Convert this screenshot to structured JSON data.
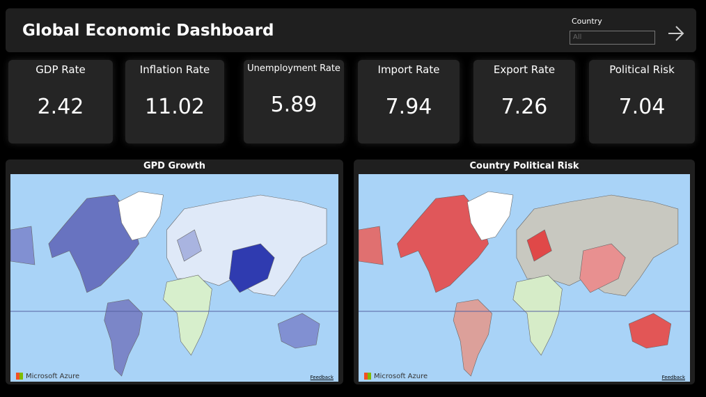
{
  "header": {
    "title": "Global Economic Dashboard",
    "filter": {
      "label": "Country",
      "value": "All"
    }
  },
  "kpis": [
    {
      "label": "GDP Rate",
      "value": "2.42"
    },
    {
      "label": "Inflation Rate",
      "value": "11.02"
    },
    {
      "label": "Unemployment Rate",
      "value": "5.89"
    },
    {
      "label": "Import Rate",
      "value": "7.94"
    },
    {
      "label": "Export Rate",
      "value": "7.26"
    },
    {
      "label": "Political Risk",
      "value": "7.04"
    }
  ],
  "maps": [
    {
      "title": "GPD Growth",
      "brand": "Microsoft Azure",
      "feedback": "Feedback"
    },
    {
      "title": "Country Political Risk",
      "brand": "Microsoft Azure",
      "feedback": "Feedback"
    }
  ]
}
